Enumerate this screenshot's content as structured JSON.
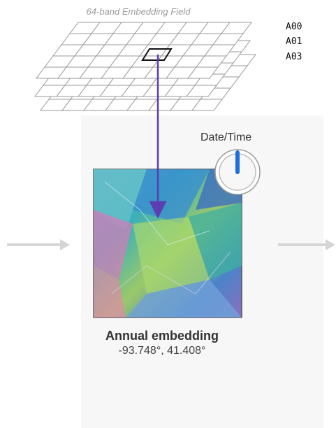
{
  "field": {
    "title": "64-band Embedding Field",
    "bands": [
      "A00",
      "A01",
      "A03"
    ]
  },
  "datetime": {
    "label": "Date/Time",
    "icon": "clock-dial-icon"
  },
  "embedding": {
    "title": "Annual embedding",
    "coords": "-93.748°, 41.408°"
  },
  "colors": {
    "arrow": "#5b3fb0",
    "dial": "#1e6fdc",
    "grid": "#9a9a9a",
    "flow_arrow": "#d5d5d5"
  }
}
